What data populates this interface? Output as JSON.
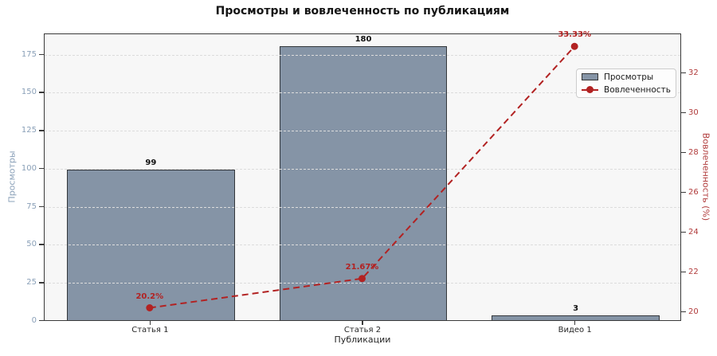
{
  "title": "Просмотры и вовлеченность по публикациям",
  "colors": {
    "bar_fill": "#8594a6",
    "bar_edge": "#33373b",
    "line": "#b22222",
    "left_axis_text": "#8aa0b8",
    "right_axis_text": "#b03a3a",
    "plot_bg": "#f7f7f7",
    "grid": "#dcdcdc",
    "frame": "#3a3a3a"
  },
  "chart_data": {
    "type": "bar",
    "combo": "bar+line (dual axis)",
    "title": "Просмотры и вовлеченность по публикациям",
    "xlabel": "Публикации",
    "ylabel_left": "Просмотры",
    "ylabel_right": "Вовлеченность (%)",
    "categories": [
      "Статья 1",
      "Статья 2",
      "Видео 1"
    ],
    "series": [
      {
        "name": "Просмотры",
        "type": "bar",
        "axis": "left",
        "values": [
          99,
          180,
          3
        ],
        "value_labels": [
          "99",
          "180",
          "3"
        ]
      },
      {
        "name": "Вовлеченность",
        "type": "line",
        "axis": "right",
        "style": "dashed, circle markers",
        "values": [
          20.2,
          21.67,
          33.33
        ],
        "value_labels": [
          "20.2%",
          "21.67%",
          "33.33%"
        ]
      }
    ],
    "left_ticks": [
      0,
      25,
      50,
      75,
      100,
      125,
      150,
      175
    ],
    "right_ticks": [
      20,
      22,
      24,
      26,
      28,
      30,
      32
    ],
    "ylim_left": [
      0,
      189
    ],
    "ylim_right": [
      19.56,
      34.0
    ],
    "grid": "horizontal dashed, at left-axis ticks",
    "legend_position": "upper right"
  }
}
